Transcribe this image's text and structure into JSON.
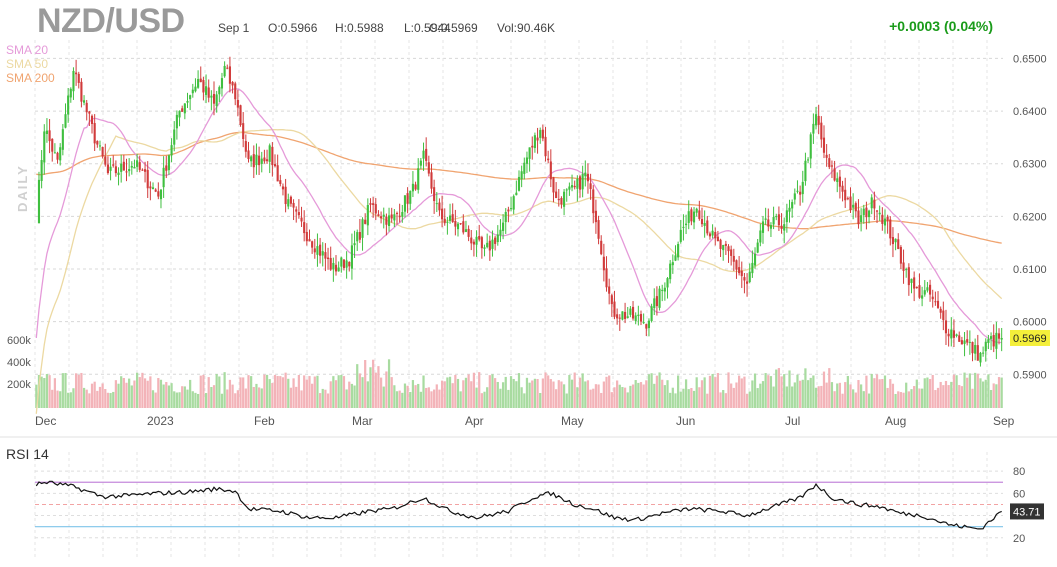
{
  "header": {
    "symbol": "NZD/USD",
    "date": "Sep 1",
    "open": "O:0.5966",
    "high": "H:0.5988",
    "low": "L:0.5944",
    "close": "C:0.5969",
    "volume": "Vol:90.46K",
    "change": "+0.0003 (0.04%)"
  },
  "legend": {
    "sma20": "SMA 20",
    "sma50": "SMA 50",
    "sma200": "SMA 200",
    "daily": "DAILY"
  },
  "colors": {
    "up": "#3fbf3f",
    "down": "#d13b3b",
    "up_volume": "#a8dba0",
    "down_volume": "#f3b3b8",
    "sma20": "#e59ad9",
    "sma50": "#ecd9a2",
    "sma200": "#f0a470",
    "rsi_line": "#111111",
    "rsi_upper": "#c48adb",
    "rsi_lower": "#7fc4ea",
    "change": "#1a9b1a",
    "price_tag": "#f4ef3a"
  },
  "price_axis": {
    "ticks": [
      "0.6500",
      "0.6400",
      "0.6300",
      "0.6200",
      "0.6100",
      "0.6000",
      "0.5900"
    ],
    "current_tag": "0.5969"
  },
  "volume_axis": {
    "ticks": [
      "600k",
      "400k",
      "200k"
    ]
  },
  "time_axis": {
    "labels": [
      "Dec",
      "2023",
      "Feb",
      "Mar",
      "Apr",
      "May",
      "Jun",
      "Jul",
      "Aug",
      "Sep"
    ]
  },
  "rsi": {
    "title": "RSI 14",
    "ticks": [
      "80",
      "60",
      "40",
      "20"
    ],
    "current_tag": "43.71"
  },
  "chart_data": {
    "type": "candlestick",
    "symbol": "NZD/USD",
    "interval": "daily",
    "price_range": [
      0.5855,
      0.6535
    ],
    "anchor_path": [
      [
        0,
        0.62
      ],
      [
        3,
        0.637
      ],
      [
        8,
        0.63
      ],
      [
        14,
        0.648
      ],
      [
        22,
        0.635
      ],
      [
        27,
        0.628
      ],
      [
        37,
        0.63
      ],
      [
        46,
        0.624
      ],
      [
        54,
        0.64
      ],
      [
        61,
        0.646
      ],
      [
        67,
        0.641
      ],
      [
        71,
        0.648
      ],
      [
        75,
        0.643
      ],
      [
        80,
        0.63
      ],
      [
        88,
        0.632
      ],
      [
        95,
        0.622
      ],
      [
        103,
        0.616
      ],
      [
        112,
        0.61
      ],
      [
        118,
        0.612
      ],
      [
        126,
        0.622
      ],
      [
        134,
        0.619
      ],
      [
        142,
        0.625
      ],
      [
        146,
        0.631
      ],
      [
        152,
        0.62
      ],
      [
        160,
        0.618
      ],
      [
        169,
        0.613
      ],
      [
        176,
        0.618
      ],
      [
        184,
        0.63
      ],
      [
        190,
        0.637
      ],
      [
        196,
        0.623
      ],
      [
        203,
        0.625
      ],
      [
        207,
        0.628
      ],
      [
        211,
        0.62
      ],
      [
        217,
        0.602
      ],
      [
        224,
        0.601
      ],
      [
        230,
        0.6
      ],
      [
        236,
        0.606
      ],
      [
        243,
        0.617
      ],
      [
        249,
        0.622
      ],
      [
        256,
        0.615
      ],
      [
        262,
        0.612
      ],
      [
        268,
        0.607
      ],
      [
        274,
        0.618
      ],
      [
        282,
        0.619
      ],
      [
        288,
        0.625
      ],
      [
        294,
        0.639
      ],
      [
        298,
        0.63
      ],
      [
        304,
        0.625
      ],
      [
        310,
        0.619
      ],
      [
        316,
        0.623
      ],
      [
        321,
        0.618
      ],
      [
        326,
        0.612
      ],
      [
        331,
        0.606
      ],
      [
        337,
        0.605
      ],
      [
        343,
        0.599
      ],
      [
        349,
        0.5965
      ],
      [
        356,
        0.5935
      ],
      [
        359,
        0.5962
      ],
      [
        364,
        0.5969
      ]
    ],
    "last_candle": {
      "open": 0.5966,
      "high": 0.5988,
      "low": 0.5944,
      "close": 0.5969,
      "volume": "90.46K"
    },
    "rsi_anchor_path": [
      [
        0,
        68
      ],
      [
        4,
        70
      ],
      [
        14,
        66
      ],
      [
        25,
        57
      ],
      [
        35,
        58
      ],
      [
        45,
        60
      ],
      [
        56,
        61
      ],
      [
        68,
        64
      ],
      [
        75,
        62
      ],
      [
        80,
        46
      ],
      [
        92,
        44
      ],
      [
        103,
        38
      ],
      [
        113,
        38
      ],
      [
        126,
        44
      ],
      [
        134,
        46
      ],
      [
        146,
        56
      ],
      [
        156,
        44
      ],
      [
        166,
        38
      ],
      [
        178,
        44
      ],
      [
        188,
        57
      ],
      [
        194,
        60
      ],
      [
        203,
        50
      ],
      [
        210,
        46
      ],
      [
        218,
        38
      ],
      [
        226,
        36
      ],
      [
        236,
        42
      ],
      [
        246,
        46
      ],
      [
        258,
        44
      ],
      [
        268,
        40
      ],
      [
        278,
        48
      ],
      [
        288,
        56
      ],
      [
        294,
        68
      ],
      [
        300,
        56
      ],
      [
        310,
        50
      ],
      [
        318,
        48
      ],
      [
        326,
        42
      ],
      [
        334,
        40
      ],
      [
        344,
        32
      ],
      [
        352,
        29
      ],
      [
        356,
        28
      ],
      [
        360,
        36
      ],
      [
        364,
        43.71
      ]
    ],
    "rsi_levels": {
      "upper": 70,
      "lower": 30,
      "mid": 50
    }
  }
}
